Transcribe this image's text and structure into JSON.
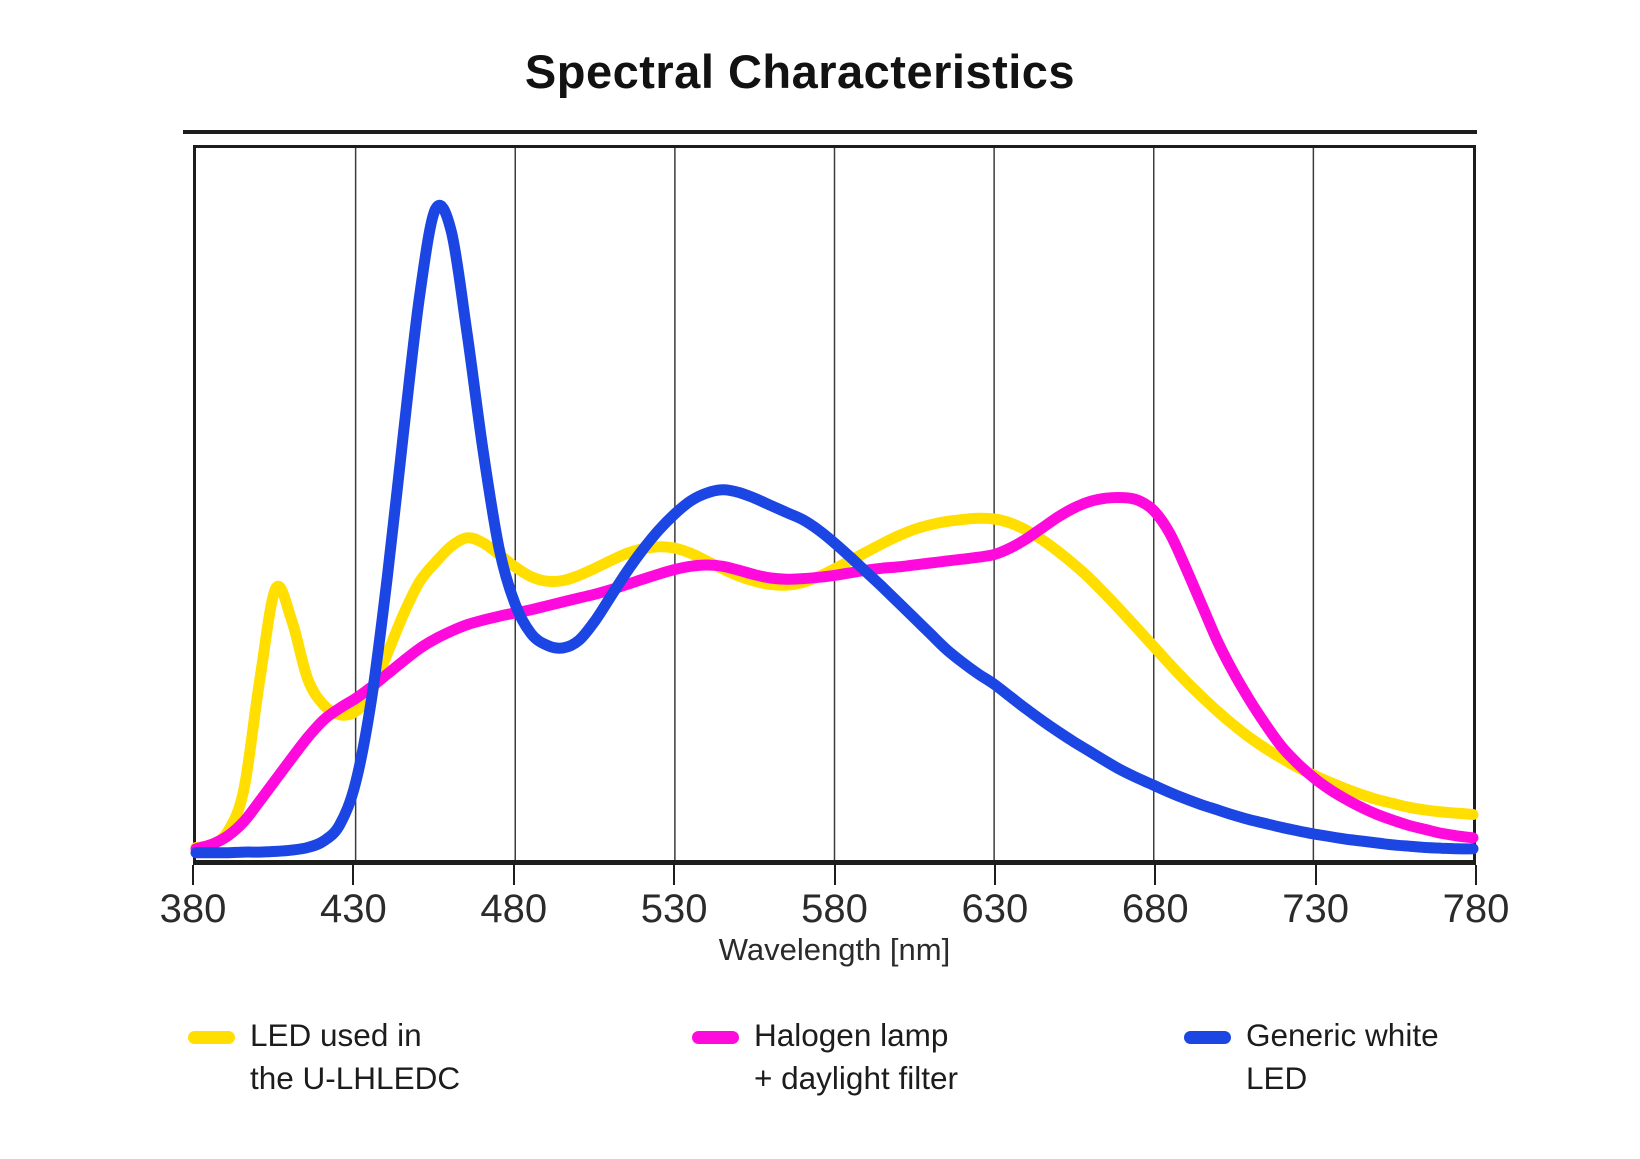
{
  "title": "Spectral Characteristics",
  "xlabel": "Wavelength [nm]",
  "colors": {
    "background": "#ffffff",
    "axis": "#1d1d1b",
    "grid": "#3c3c3c",
    "tick_label": "#2b2b2b",
    "yellow": "#FFDE00",
    "magenta": "#FF0ADC",
    "blue": "#1B46E3"
  },
  "legend": {
    "items": [
      {
        "label_line1": "LED used in",
        "label_line2": "the U-LHLEDC"
      },
      {
        "label_line1": "Halogen lamp",
        "label_line2": "+ daylight filter"
      },
      {
        "label_line1": "Generic white",
        "label_line2": "LED"
      }
    ]
  },
  "chart_data": {
    "type": "line",
    "title": "Spectral Characteristics",
    "xlabel": "Wavelength [nm]",
    "ylabel": "",
    "xlim": [
      380,
      780
    ],
    "x_ticks": [
      380,
      430,
      480,
      530,
      580,
      630,
      680,
      730,
      780
    ],
    "gridlines_x": [
      430,
      480,
      530,
      580,
      630,
      680,
      730
    ],
    "grid": "vertical-only",
    "y_axis": "unlabeled; values are relative spectral intensity normalized to the generic white LED blue peak = 1.0",
    "ylim": [
      0,
      1.05
    ],
    "legend_position": "bottom",
    "x": {
      "start": 380,
      "end": 780,
      "step": 5
    },
    "series": [
      {
        "id": "led-u-lhledc",
        "name": "LED used in the U-LHLEDC",
        "color": "#FFDE00",
        "values": [
          0.01,
          0.015,
          0.035,
          0.1,
          0.27,
          0.41,
          0.36,
          0.27,
          0.23,
          0.215,
          0.22,
          0.25,
          0.31,
          0.37,
          0.42,
          0.45,
          0.475,
          0.488,
          0.48,
          0.462,
          0.443,
          0.428,
          0.421,
          0.422,
          0.43,
          0.441,
          0.453,
          0.464,
          0.471,
          0.474,
          0.472,
          0.464,
          0.452,
          0.44,
          0.429,
          0.421,
          0.416,
          0.415,
          0.419,
          0.428,
          0.44,
          0.453,
          0.466,
          0.479,
          0.491,
          0.501,
          0.508,
          0.513,
          0.516,
          0.518,
          0.517,
          0.511,
          0.5,
          0.485,
          0.467,
          0.447,
          0.425,
          0.4,
          0.374,
          0.347,
          0.32,
          0.293,
          0.267,
          0.243,
          0.22,
          0.199,
          0.18,
          0.163,
          0.148,
          0.134,
          0.122,
          0.111,
          0.101,
          0.092,
          0.084,
          0.078,
          0.072,
          0.068,
          0.065,
          0.063,
          0.061
        ]
      },
      {
        "id": "halogen-daylight-filter",
        "name": "Halogen lamp + daylight filter",
        "color": "#FF0ADC",
        "values": [
          0.008,
          0.015,
          0.028,
          0.05,
          0.082,
          0.115,
          0.148,
          0.18,
          0.207,
          0.225,
          0.24,
          0.258,
          0.278,
          0.298,
          0.317,
          0.332,
          0.344,
          0.354,
          0.361,
          0.367,
          0.372,
          0.377,
          0.383,
          0.389,
          0.395,
          0.401,
          0.408,
          0.416,
          0.424,
          0.432,
          0.439,
          0.444,
          0.446,
          0.444,
          0.438,
          0.431,
          0.426,
          0.424,
          0.425,
          0.427,
          0.43,
          0.434,
          0.438,
          0.441,
          0.443,
          0.446,
          0.449,
          0.452,
          0.455,
          0.458,
          0.462,
          0.472,
          0.486,
          0.503,
          0.52,
          0.534,
          0.544,
          0.549,
          0.55,
          0.546,
          0.53,
          0.495,
          0.442,
          0.385,
          0.328,
          0.28,
          0.238,
          0.2,
          0.166,
          0.14,
          0.118,
          0.1,
          0.085,
          0.072,
          0.061,
          0.052,
          0.044,
          0.038,
          0.032,
          0.028,
          0.025
        ]
      },
      {
        "id": "generic-white-led",
        "name": "Generic white LED",
        "color": "#1B46E3",
        "values": [
          0.002,
          0.002,
          0.002,
          0.003,
          0.003,
          0.004,
          0.006,
          0.01,
          0.02,
          0.045,
          0.11,
          0.24,
          0.43,
          0.65,
          0.86,
          0.995,
          0.96,
          0.8,
          0.62,
          0.47,
          0.385,
          0.34,
          0.322,
          0.318,
          0.33,
          0.36,
          0.398,
          0.436,
          0.47,
          0.5,
          0.525,
          0.545,
          0.557,
          0.562,
          0.558,
          0.549,
          0.538,
          0.527,
          0.516,
          0.5,
          0.48,
          0.458,
          0.435,
          0.412,
          0.388,
          0.364,
          0.34,
          0.316,
          0.296,
          0.278,
          0.262,
          0.243,
          0.224,
          0.206,
          0.189,
          0.173,
          0.158,
          0.143,
          0.129,
          0.117,
          0.106,
          0.095,
          0.085,
          0.076,
          0.068,
          0.06,
          0.053,
          0.047,
          0.041,
          0.036,
          0.031,
          0.027,
          0.023,
          0.02,
          0.017,
          0.014,
          0.012,
          0.01,
          0.009,
          0.008,
          0.008
        ]
      }
    ]
  }
}
